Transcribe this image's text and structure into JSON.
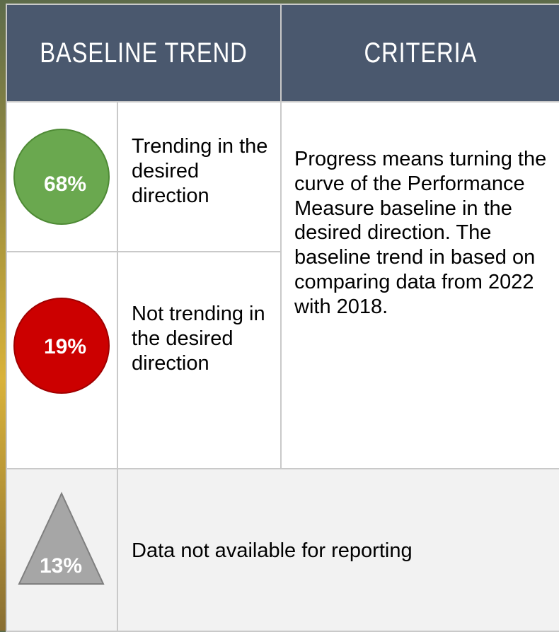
{
  "header": {
    "columns": [
      "BASELINE TREND",
      "CRITERIA"
    ]
  },
  "rows": [
    {
      "value": "68%",
      "label": "Trending in the desired direction"
    },
    {
      "value": "19%",
      "label": "Not trending in the desired direction"
    },
    {
      "value": "13%",
      "label": "Data not available for reporting"
    }
  ],
  "criteria": "Progress means turning the curve of the Performance Measure baseline in the desired direction. The baseline trend in based on comparing data from 2022 with 2018."
}
